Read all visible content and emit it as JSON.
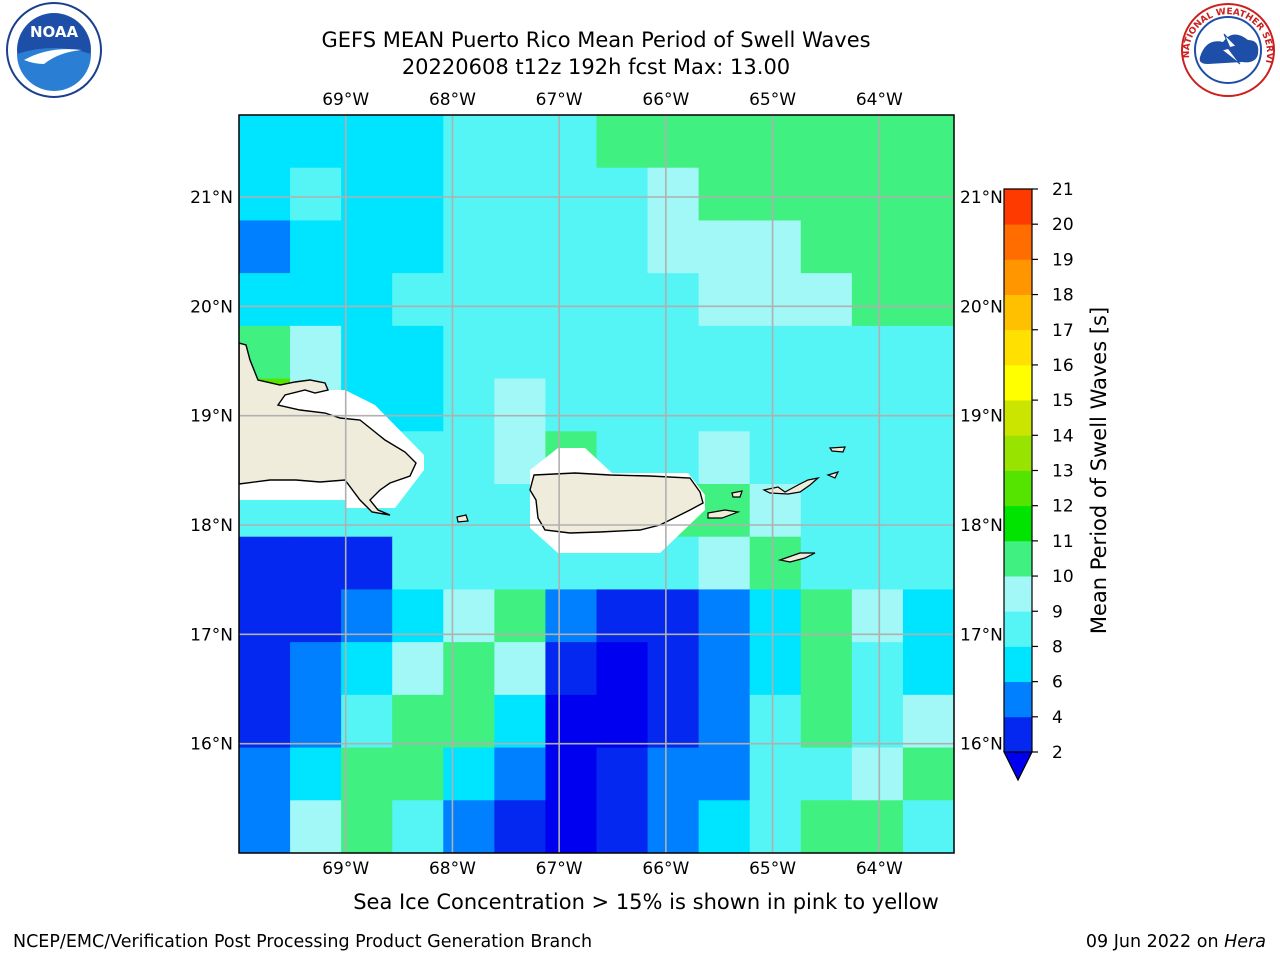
{
  "header": {
    "title_line1": "GEFS MEAN Puerto Rico Mean Period of Swell Waves",
    "title_line2": "20220608 t12z 192h fcst   Max: 13.00"
  },
  "logos": {
    "left": "noaa-logo",
    "right": "nws-logo",
    "left_text": "NOAA",
    "right_text": "NATIONAL WEATHER SERVICE"
  },
  "caption": "Sea Ice Concentration > 15% is shown in pink to yellow",
  "footer": {
    "left": "NCEP/EMC/Verification Post Processing Product Generation Branch",
    "date": "09 Jun 2022 on",
    "host": "Hera"
  },
  "colors": {
    "land": "#efecdc",
    "grid": "#b0b0b0",
    "coast": "#000000"
  },
  "chart_data": {
    "type": "heatmap",
    "title": "GEFS MEAN Puerto Rico Mean Period of Swell Waves",
    "subtitle": "20220608 t12z 192h fcst   Max: 13.00",
    "lon_range": [
      -70.0,
      -63.3
    ],
    "lat_range": [
      15.0,
      21.75
    ],
    "lon_ticks": [
      -69,
      -68,
      -67,
      -66,
      -65,
      -64
    ],
    "lon_tick_labels": [
      "69°W",
      "68°W",
      "67°W",
      "66°W",
      "65°W",
      "64°W"
    ],
    "lat_ticks": [
      16,
      17,
      18,
      19,
      20,
      21
    ],
    "lat_tick_labels": [
      "16°N",
      "17°N",
      "18°N",
      "19°N",
      "20°N",
      "21°N"
    ],
    "grid": true,
    "colorbar": {
      "label": "Mean Period of Swell Waves [s]",
      "levels": [
        2,
        4,
        6,
        8,
        9,
        10,
        11,
        12,
        13,
        14,
        15,
        16,
        17,
        18,
        19,
        20,
        21
      ],
      "tick_labels": [
        "2",
        "4",
        "6",
        "8",
        "9",
        "10",
        "11",
        "12",
        "13",
        "14",
        "15",
        "16",
        "17",
        "18",
        "19",
        "20",
        "21"
      ],
      "colors": [
        "#0528f0",
        "#0080ff",
        "#00e5ff",
        "#55f5f5",
        "#a2f7f7",
        "#40f080",
        "#00e400",
        "#55e400",
        "#98e400",
        "#cbe400",
        "#ffff00",
        "#ffe000",
        "#ffc000",
        "#ff9600",
        "#ff6c00",
        "#ff3a00"
      ],
      "extend_min_color": "#0000f0"
    },
    "field": {
      "lon_range": [
        -70.0,
        -63.3
      ],
      "lat_range": [
        15.0,
        21.75
      ],
      "cols": 14,
      "rows": 14,
      "row_order": "north_to_south",
      "values": [
        [
          7.5,
          7.5,
          7.5,
          7.5,
          8.5,
          8.5,
          8.6,
          10,
          10,
          10,
          10,
          10,
          10,
          10
        ],
        [
          7.5,
          8.5,
          7.5,
          7.5,
          8.5,
          8.5,
          8.5,
          8.5,
          9.5,
          10,
          10,
          10,
          10,
          10
        ],
        [
          5.0,
          7.5,
          7.5,
          7.5,
          8.5,
          8.5,
          8.5,
          8.5,
          9.5,
          9.5,
          9.5,
          10,
          10,
          10
        ],
        [
          7.5,
          7.5,
          7.5,
          8.5,
          8.5,
          8.5,
          8.5,
          8.5,
          8.5,
          9.5,
          9.5,
          9.5,
          10,
          10
        ],
        [
          10,
          9.5,
          7.5,
          7.5,
          8.5,
          8.5,
          8.5,
          8.5,
          8.5,
          8.5,
          8.5,
          8.5,
          8.5,
          8.5
        ],
        [
          12.5,
          9.5,
          7.5,
          7.5,
          8.5,
          9.5,
          8.5,
          8.5,
          8.5,
          8.5,
          8.5,
          8.5,
          8.5,
          8.5
        ],
        [
          8.5,
          8.5,
          8.5,
          8.5,
          8.5,
          9.5,
          10,
          8.5,
          8.5,
          9.5,
          8.5,
          8.5,
          8.5,
          8.5
        ],
        [
          8.5,
          8.5,
          8.5,
          8.5,
          8.5,
          8.5,
          9.5,
          8.5,
          10,
          10,
          9.5,
          8.5,
          8.5,
          8.5
        ],
        [
          3.0,
          3.0,
          3.0,
          8.5,
          8.5,
          8.5,
          8.5,
          8.5,
          8.5,
          9.5,
          10,
          8.5,
          8.5,
          8.5
        ],
        [
          3.0,
          3.0,
          5.0,
          7.5,
          9.5,
          10,
          5.0,
          3.0,
          3.0,
          5.0,
          7.5,
          10,
          9.5,
          7.5
        ],
        [
          3.0,
          5.0,
          7.5,
          9.5,
          10,
          9.5,
          3.0,
          1.5,
          3.0,
          5.0,
          7.5,
          10,
          8.5,
          7.5
        ],
        [
          3.0,
          5.0,
          8.5,
          10,
          10,
          7.5,
          1.5,
          1.5,
          3.0,
          5.0,
          8.5,
          10,
          8.5,
          9.5
        ],
        [
          5.0,
          7.5,
          10,
          10,
          7.5,
          5.0,
          1.5,
          3.0,
          5.0,
          5.0,
          8.5,
          8.5,
          9.5,
          10
        ],
        [
          5.0,
          9.5,
          10,
          8.5,
          5.0,
          3.0,
          1.5,
          3.0,
          5.0,
          7.5,
          8.5,
          10,
          10,
          8.5
        ]
      ]
    }
  }
}
